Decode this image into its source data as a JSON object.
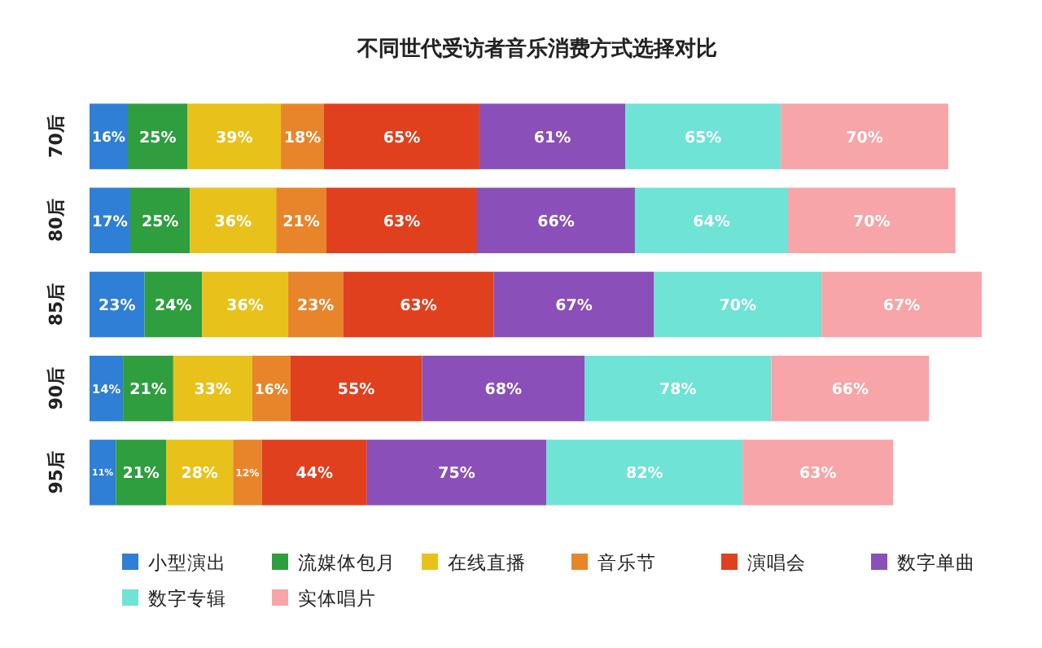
{
  "chart_data": {
    "type": "bar",
    "orientation": "horizontal",
    "stacked": true,
    "legend": "bottom",
    "title": "不同世代受访者音乐消费方式选择对比",
    "categories": [
      "70后",
      "80后",
      "85后",
      "90后",
      "95后"
    ],
    "series": [
      {
        "name": "小型演出",
        "color": "#2f7fd6",
        "values": [
          16,
          17,
          23,
          14,
          11
        ],
        "value_labels": [
          "16%",
          "17%",
          "23%",
          "14%",
          "11%"
        ]
      },
      {
        "name": "流媒体包月",
        "color": "#2e9e3e",
        "values": [
          25,
          25,
          24,
          21,
          21
        ],
        "value_labels": [
          "25%",
          "25%",
          "24%",
          "21%",
          "21%"
        ]
      },
      {
        "name": "在线直播",
        "color": "#e8c21a",
        "values": [
          39,
          36,
          36,
          33,
          28
        ],
        "value_labels": [
          "39%",
          "36%",
          "36%",
          "33%",
          "28%"
        ]
      },
      {
        "name": "音乐节",
        "color": "#e8852a",
        "values": [
          18,
          21,
          23,
          16,
          12
        ],
        "value_labels": [
          "18%",
          "21%",
          "23%",
          "16%",
          "12%"
        ]
      },
      {
        "name": "演唱会",
        "color": "#e0401e",
        "values": [
          65,
          63,
          63,
          55,
          44
        ],
        "value_labels": [
          "65%",
          "63%",
          "63%",
          "55%",
          "44%"
        ]
      },
      {
        "name": "数字单曲",
        "color": "#8a4fb8",
        "values": [
          61,
          66,
          67,
          68,
          75
        ],
        "value_labels": [
          "61%",
          "66%",
          "67%",
          "68%",
          "75%"
        ]
      },
      {
        "name": "数字专辑",
        "color": "#6fe3d6",
        "values": [
          65,
          64,
          70,
          78,
          82
        ],
        "value_labels": [
          "65%",
          "64%",
          "70%",
          "78%",
          "82%"
        ]
      },
      {
        "name": "实体唱片",
        "color": "#f7a5a8",
        "values": [
          70,
          70,
          67,
          66,
          63
        ],
        "value_labels": [
          "70%",
          "70%",
          "67%",
          "66%",
          "63%"
        ]
      }
    ]
  }
}
